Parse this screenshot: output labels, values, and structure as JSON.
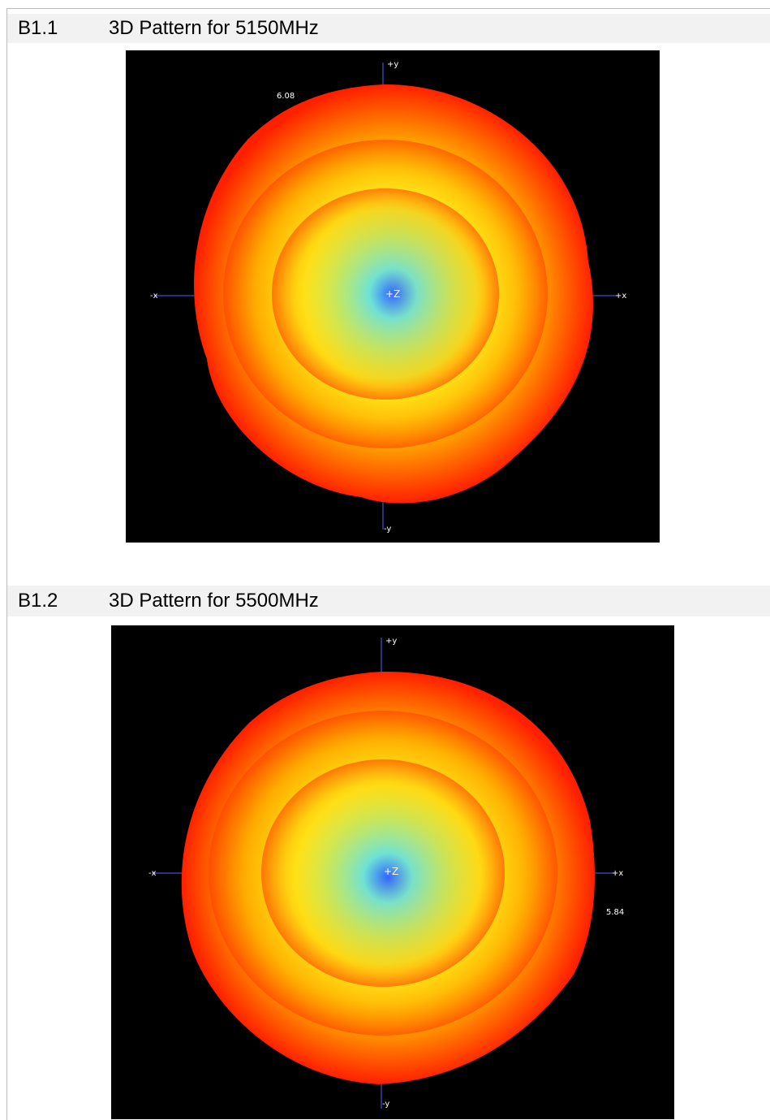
{
  "sections": [
    {
      "number": "B1.1",
      "title": "3D Pattern for 5150MHz",
      "plot": {
        "axis_top": "+y",
        "axis_left": "-x",
        "axis_right": "+x",
        "axis_bottom": "-y",
        "axis_center": "+Z",
        "peak_label": "6.08"
      }
    },
    {
      "number": "B1.2",
      "title": "3D Pattern for 5500MHz",
      "plot": {
        "axis_top": "+y",
        "axis_left": "-x",
        "axis_right": "+x",
        "axis_bottom": "-y",
        "axis_center": "+Z",
        "peak_label": "5.84"
      }
    }
  ]
}
